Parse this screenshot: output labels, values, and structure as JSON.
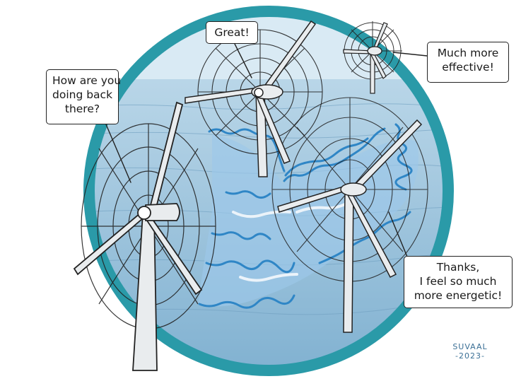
{
  "bubbles": {
    "back": {
      "lines": [
        "How are you",
        "doing back",
        "there?"
      ]
    },
    "middle": {
      "lines": [
        "Great!"
      ]
    },
    "far": {
      "lines": [
        "Much more",
        "effective!"
      ]
    },
    "right": {
      "lines": [
        "Thanks,",
        "I feel so much",
        "more energetic!"
      ]
    }
  },
  "signature": {
    "name": "SUVAAL",
    "year": "-2023-"
  },
  "colors": {
    "ring": "#2a9aa8",
    "sky": "#d9eaf4",
    "sea": "#9cc3dc",
    "wake": "#2f86c6",
    "turbine": "#e9ecee",
    "outline": "#222222"
  }
}
